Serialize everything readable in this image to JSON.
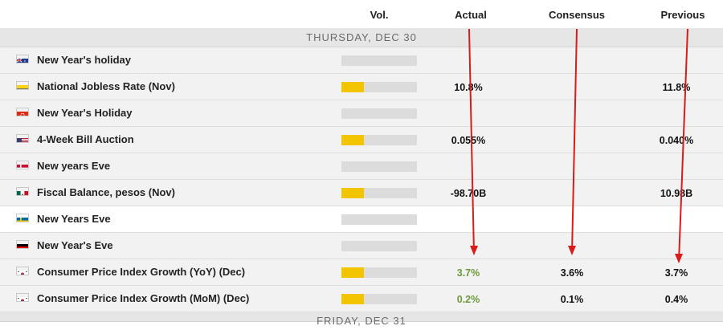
{
  "columns": {
    "vol": "Vol.",
    "actual": "Actual",
    "consensus": "Consensus",
    "previous": "Previous"
  },
  "day_headers": [
    "THURSDAY, DEC 30",
    "FRIDAY, DEC 31"
  ],
  "events": [
    {
      "flag": "au-flag-icon",
      "name": "New Year's holiday",
      "volume": 0,
      "actual": "",
      "consensus": "",
      "previous": ""
    },
    {
      "flag": "co-flag-icon",
      "name": "National Jobless Rate (Nov)",
      "volume": 0.3,
      "actual": "10.8%",
      "consensus": "",
      "previous": "11.8%"
    },
    {
      "flag": "hk-flag-icon",
      "name": "New Year's Holiday",
      "volume": 0,
      "actual": "",
      "consensus": "",
      "previous": ""
    },
    {
      "flag": "us-flag-icon",
      "name": "4-Week Bill Auction",
      "volume": 0.3,
      "actual": "0.055%",
      "consensus": "",
      "previous": "0.040%"
    },
    {
      "flag": "dk-flag-icon",
      "name": "New years Eve",
      "volume": 0,
      "actual": "",
      "consensus": "",
      "previous": ""
    },
    {
      "flag": "mx-flag-icon",
      "name": "Fiscal Balance, pesos (Nov)",
      "volume": 0.3,
      "actual": "-98.70B",
      "consensus": "",
      "previous": "10.98B"
    },
    {
      "flag": "se-flag-icon",
      "name": "New Years Eve",
      "volume": 0,
      "actual": "",
      "consensus": "",
      "previous": ""
    },
    {
      "flag": "de-flag-icon",
      "name": "New Year's Eve",
      "volume": 0,
      "actual": "",
      "consensus": "",
      "previous": ""
    },
    {
      "flag": "kr-flag-icon",
      "name": "Consumer Price Index Growth (YoY) (Dec)",
      "volume": 0.3,
      "actual": "3.7%",
      "consensus": "3.6%",
      "previous": "3.7%"
    },
    {
      "flag": "kr-flag-icon",
      "name": "Consumer Price Index Growth (MoM) (Dec)",
      "volume": 0.3,
      "actual": "0.2%",
      "consensus": "0.1%",
      "previous": "0.4%"
    }
  ],
  "colors": {
    "volume_fill": "#f2c500",
    "actual_positive": "#6a9a3a",
    "annotation_arrow": "#d81b1b"
  }
}
